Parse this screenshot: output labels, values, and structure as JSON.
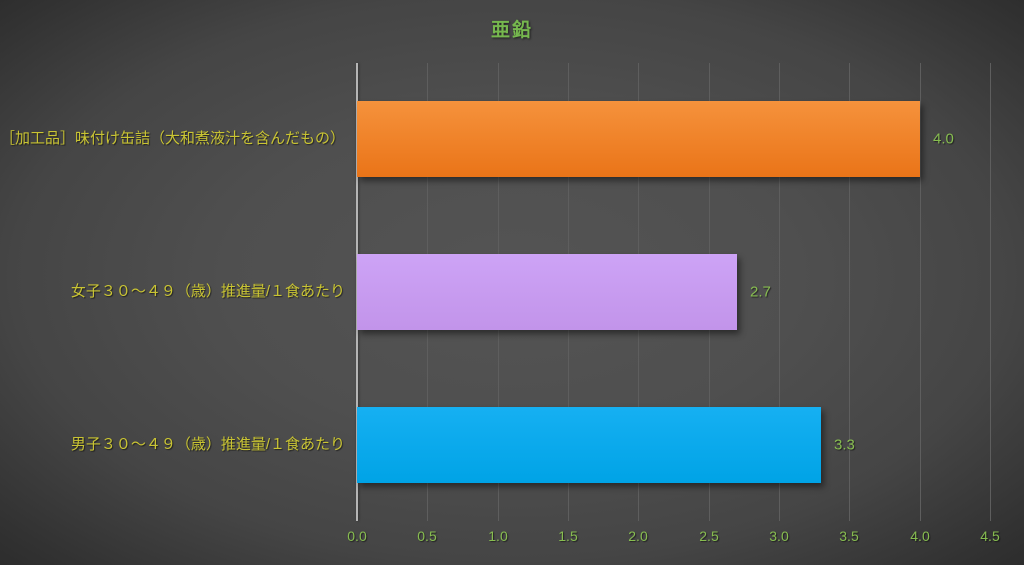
{
  "chart_data": {
    "type": "bar",
    "orientation": "horizontal",
    "title": "亜鉛",
    "categories": [
      "［加工品］味付け缶詰（大和煮液汁を含んだもの）",
      "女子３０～４９（歳）推進量/１食あたり",
      "男子３０～４９（歳）推進量/１食あたり"
    ],
    "category_order": "top-to-bottom",
    "values": [
      4.0,
      2.7,
      3.3
    ],
    "value_labels": [
      "4.0",
      "2.7",
      "3.3"
    ],
    "xlim": [
      0,
      4.5
    ],
    "xticks": [
      "0.0",
      "0.5",
      "1.0",
      "1.5",
      "2.0",
      "2.5",
      "3.0",
      "3.5",
      "4.0",
      "4.5"
    ],
    "grid": true,
    "legend": false,
    "xlabel": "",
    "ylabel": "",
    "bar_colors": [
      {
        "name": "orange",
        "top": "#f5923c",
        "bottom": "#ea7418"
      },
      {
        "name": "lavender",
        "top": "#cda3f6",
        "bottom": "#c294ea"
      },
      {
        "name": "blue",
        "top": "#16b0f2",
        "bottom": "#00a3e6"
      }
    ],
    "colors": {
      "title_green": "#76b84e",
      "category_yellow": "#c9c433",
      "tick_green": "#87bd50",
      "value_green": "#87bd50",
      "gridline": "#5e5e5e",
      "axis_line": "#b5b5b5",
      "background_center": "#525252",
      "background_corner": "#2a2a2a"
    }
  }
}
